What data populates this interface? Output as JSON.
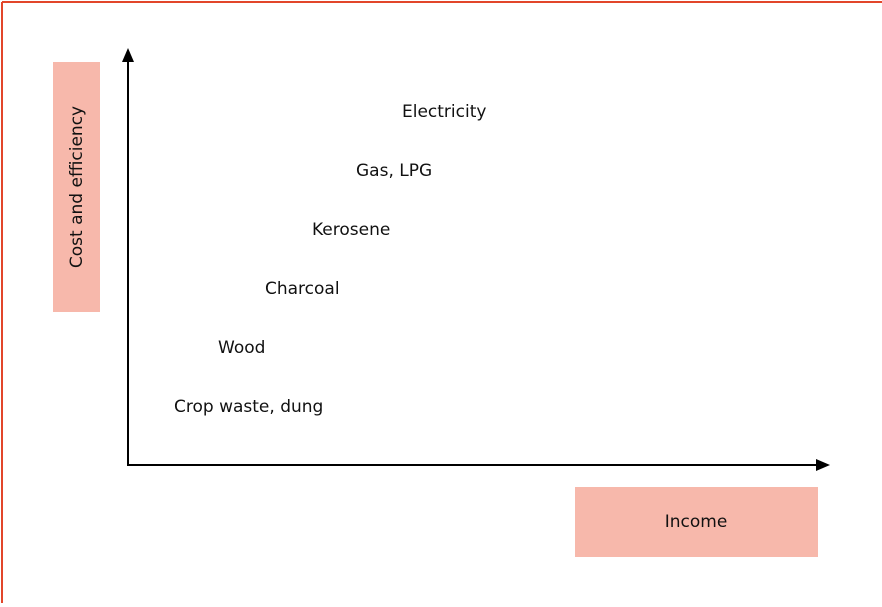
{
  "diagram": {
    "y_axis_label": "Cost and efficiency",
    "x_axis_label": "Income",
    "steps": [
      "Crop waste, dung",
      "Wood",
      "Charcoal",
      "Kerosene",
      "Gas, LPG",
      "Electricity"
    ]
  }
}
